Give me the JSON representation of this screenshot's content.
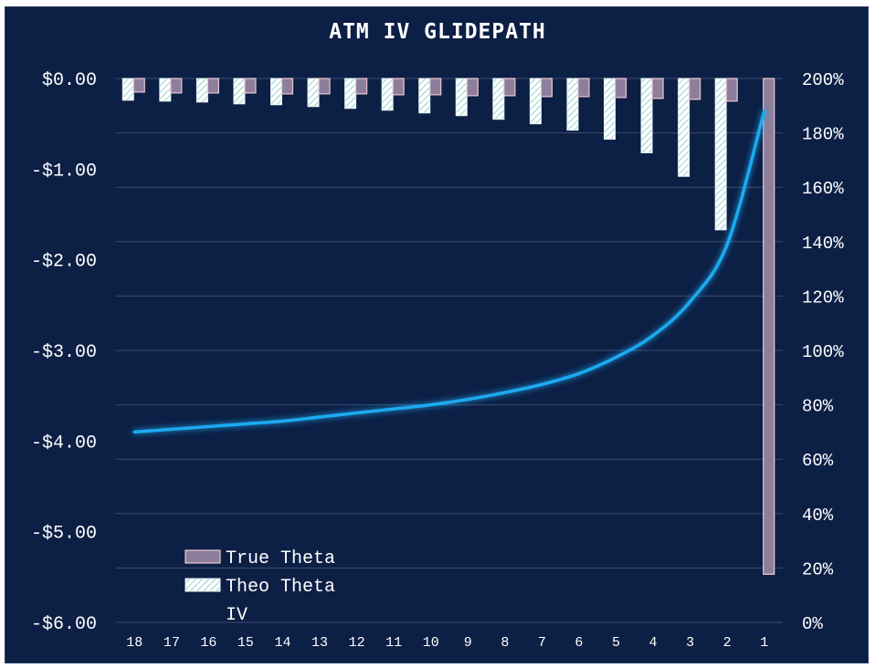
{
  "chart_data": {
    "type": "bar+line",
    "title": "ATM IV GLIDEPATH",
    "categories": [
      "18",
      "17",
      "16",
      "15",
      "14",
      "13",
      "12",
      "11",
      "10",
      "9",
      "8",
      "7",
      "6",
      "5",
      "4",
      "3",
      "2",
      "1"
    ],
    "series": [
      {
        "name": "True Theta",
        "type": "bar",
        "axis": "left",
        "color": "#8d7f9b",
        "values": [
          -0.15,
          -0.16,
          -0.16,
          -0.16,
          -0.17,
          -0.17,
          -0.17,
          -0.18,
          -0.18,
          -0.19,
          -0.19,
          -0.2,
          -0.2,
          -0.21,
          -0.22,
          -0.23,
          -0.25,
          -5.47
        ]
      },
      {
        "name": "Theo Theta",
        "type": "bar",
        "axis": "left",
        "color": "#ffffff",
        "pattern": "diagonal-hatch",
        "values": [
          -0.24,
          -0.25,
          -0.26,
          -0.28,
          -0.29,
          -0.31,
          -0.33,
          -0.35,
          -0.38,
          -0.41,
          -0.45,
          -0.5,
          -0.57,
          -0.67,
          -0.82,
          -1.08,
          -1.67,
          0
        ]
      },
      {
        "name": "IV",
        "type": "line",
        "axis": "right",
        "color": "#1eaaf1",
        "values": [
          0.7,
          0.71,
          0.72,
          0.73,
          0.74,
          0.755,
          0.77,
          0.785,
          0.8,
          0.82,
          0.845,
          0.875,
          0.915,
          0.975,
          1.055,
          1.18,
          1.39,
          1.88
        ]
      }
    ],
    "y_left": {
      "min": -6,
      "max": 0,
      "ticks": [
        0,
        -1,
        -2,
        -3,
        -4,
        -5,
        -6
      ],
      "tick_labels": [
        "$0.00",
        "-$1.00",
        "-$2.00",
        "-$3.00",
        "-$4.00",
        "-$5.00",
        "-$6.00"
      ]
    },
    "y_right": {
      "min": 0,
      "max": 2,
      "ticks": [
        2,
        1.8,
        1.6,
        1.4,
        1.2,
        1.0,
        0.8,
        0.6,
        0.4,
        0.2,
        0
      ],
      "tick_labels": [
        "200%",
        "180%",
        "160%",
        "140%",
        "120%",
        "100%",
        "80%",
        "60%",
        "40%",
        "20%",
        "0%"
      ]
    },
    "grid": true,
    "legend_position": "bottom-left",
    "colors": {
      "background": "#0c1f45",
      "grid": "#3a4c70",
      "text": "#ffffff"
    }
  }
}
